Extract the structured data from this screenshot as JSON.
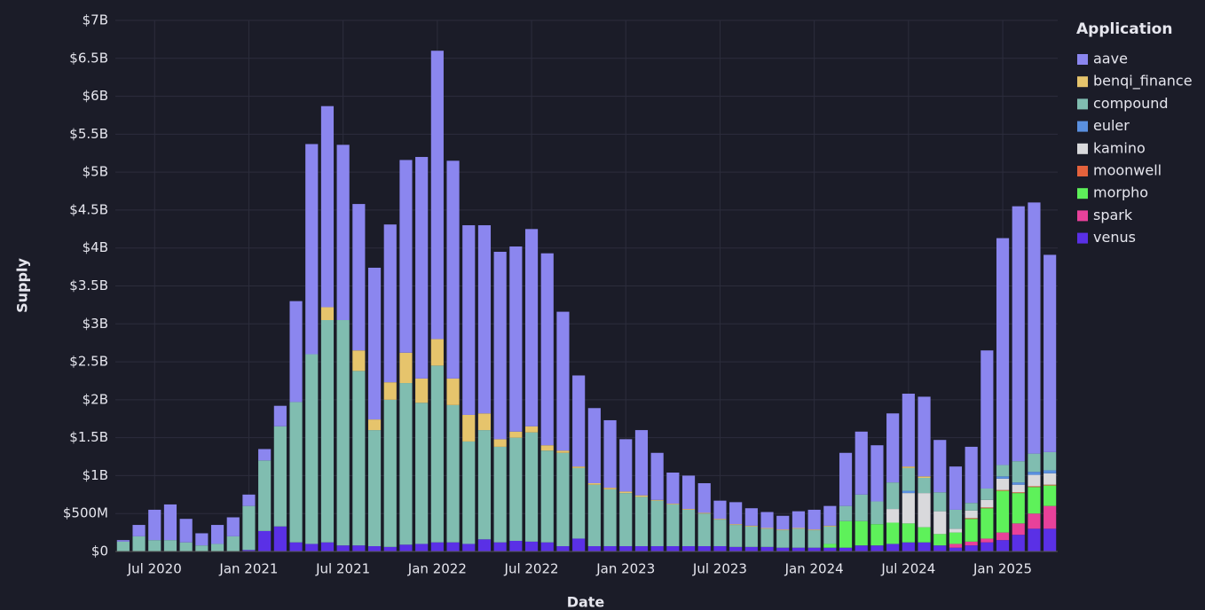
{
  "chart_data": {
    "type": "stacked_bar",
    "x_label": "Date",
    "y_label": "Supply",
    "legend_title": "Application",
    "legend_position": "right",
    "categories": [
      null,
      null,
      "Jul 2020",
      null,
      null,
      null,
      null,
      null,
      "Jan 2021",
      null,
      null,
      null,
      null,
      null,
      "Jul 2021",
      null,
      null,
      null,
      null,
      null,
      "Jan 2022",
      null,
      null,
      null,
      null,
      null,
      "Jul 2022",
      null,
      null,
      null,
      null,
      null,
      "Jan 2023",
      null,
      null,
      null,
      null,
      null,
      "Jul 2023",
      null,
      null,
      null,
      null,
      null,
      "Jan 2024",
      null,
      null,
      null,
      null,
      null,
      "Jul 2024",
      null,
      null,
      null,
      null,
      null,
      "Jan 2025",
      null,
      null,
      null
    ],
    "ylim": [
      0,
      7000000000.0
    ],
    "yticks": [
      {
        "value": 0,
        "label": "$0"
      },
      {
        "value": 500000000.0,
        "label": "$500M"
      },
      {
        "value": 1000000000.0,
        "label": "$1B"
      },
      {
        "value": 1500000000.0,
        "label": "$1.5B"
      },
      {
        "value": 2000000000.0,
        "label": "$2B"
      },
      {
        "value": 2500000000.0,
        "label": "$2.5B"
      },
      {
        "value": 3000000000.0,
        "label": "$3B"
      },
      {
        "value": 3500000000.0,
        "label": "$3.5B"
      },
      {
        "value": 4000000000.0,
        "label": "$4B"
      },
      {
        "value": 4500000000.0,
        "label": "$4.5B"
      },
      {
        "value": 5000000000.0,
        "label": "$5B"
      },
      {
        "value": 5500000000.0,
        "label": "$5.5B"
      },
      {
        "value": 6000000000.0,
        "label": "$6B"
      },
      {
        "value": 6500000000.0,
        "label": "$6.5B"
      },
      {
        "value": 7000000000.0,
        "label": "$7B"
      }
    ],
    "grid": true,
    "series": [
      {
        "name": "aave",
        "color": "#8b86ef",
        "values": [
          20000000.0,
          150000000.0,
          400000000.0,
          470000000.0,
          310000000.0,
          160000000.0,
          250000000.0,
          250000000.0,
          150000000.0,
          150000000.0,
          270000000.0,
          1330000000.0,
          2770000000.0,
          2650000000.0,
          2310000000.0,
          1930000000.0,
          2000000000.0,
          2080000000.0,
          2540000000.0,
          2920000000.0,
          3800000000.0,
          2870000000.0,
          2500000000.0,
          2480000000.0,
          2470000000.0,
          2440000000.0,
          2600000000.0,
          2530000000.0,
          1830000000.0,
          1200000000.0,
          990000000.0,
          890000000.0,
          690000000.0,
          860000000.0,
          620000000.0,
          410000000.0,
          440000000.0,
          390000000.0,
          240000000.0,
          290000000.0,
          230000000.0,
          210000000.0,
          180000000.0,
          220000000.0,
          260000000.0,
          260000000.0,
          700000000.0,
          830000000.0,
          740000000.0,
          910000000.0,
          960000000.0,
          1050000000.0,
          690000000.0,
          570000000.0,
          740000000.0,
          1820000000.0,
          2990000000.0,
          3360000000.0,
          3310000000.0,
          2600000000.0
        ]
      },
      {
        "name": "benqi_finance",
        "color": "#e6c46c",
        "values": [
          0,
          0,
          0,
          0,
          0,
          0,
          0,
          0,
          0,
          0,
          0,
          0,
          0,
          170000000.0,
          0,
          270000000.0,
          140000000.0,
          230000000.0,
          400000000.0,
          320000000.0,
          350000000.0,
          350000000.0,
          350000000.0,
          220000000.0,
          100000000.0,
          80000000.0,
          80000000.0,
          70000000.0,
          30000000.0,
          20000000.0,
          20000000.0,
          20000000.0,
          20000000.0,
          20000000.0,
          10000000.0,
          10000000.0,
          10000000.0,
          10000000.0,
          10000000.0,
          10000000.0,
          10000000.0,
          10000000.0,
          10000000.0,
          10000000.0,
          10000000.0,
          10000000.0,
          0,
          0,
          0,
          0,
          20000000.0,
          20000000.0,
          0,
          0,
          0,
          0,
          0,
          0,
          0,
          0
        ]
      },
      {
        "name": "compound",
        "color": "#80bdb0",
        "values": [
          130000000.0,
          200000000.0,
          150000000.0,
          150000000.0,
          120000000.0,
          80000000.0,
          100000000.0,
          200000000.0,
          580000000.0,
          930000000.0,
          1320000000.0,
          1850000000.0,
          2500000000.0,
          2930000000.0,
          2970000000.0,
          2300000000.0,
          1530000000.0,
          1940000000.0,
          2130000000.0,
          1860000000.0,
          2330000000.0,
          1810000000.0,
          1350000000.0,
          1440000000.0,
          1260000000.0,
          1360000000.0,
          1440000000.0,
          1210000000.0,
          1230000000.0,
          930000000.0,
          810000000.0,
          750000000.0,
          700000000.0,
          650000000.0,
          600000000.0,
          550000000.0,
          480000000.0,
          430000000.0,
          350000000.0,
          290000000.0,
          270000000.0,
          240000000.0,
          230000000.0,
          250000000.0,
          230000000.0,
          230000000.0,
          200000000.0,
          350000000.0,
          300000000.0,
          350000000.0,
          300000000.0,
          200000000.0,
          250000000.0,
          250000000.0,
          100000000.0,
          150000000.0,
          150000000.0,
          280000000.0,
          240000000.0,
          240000000.0
        ]
      },
      {
        "name": "euler",
        "color": "#5a90e0",
        "values": [
          0,
          0,
          0,
          0,
          0,
          0,
          0,
          0,
          0,
          0,
          0,
          0,
          0,
          0,
          0,
          0,
          0,
          0,
          0,
          0,
          0,
          0,
          0,
          0,
          0,
          0,
          0,
          0,
          0,
          0,
          0,
          0,
          0,
          0,
          0,
          0,
          0,
          0,
          0,
          0,
          0,
          0,
          0,
          0,
          0,
          0,
          0,
          0,
          0,
          0,
          30000000.0,
          0,
          0,
          0,
          0,
          0,
          30000000.0,
          30000000.0,
          40000000.0,
          40000000.0
        ]
      },
      {
        "name": "kamino",
        "color": "#d9d9dc",
        "values": [
          0,
          0,
          0,
          0,
          0,
          0,
          0,
          0,
          0,
          0,
          0,
          0,
          0,
          0,
          0,
          0,
          0,
          0,
          0,
          0,
          0,
          0,
          0,
          0,
          0,
          0,
          0,
          0,
          0,
          0,
          0,
          0,
          0,
          0,
          0,
          0,
          0,
          0,
          0,
          0,
          0,
          0,
          0,
          0,
          0,
          0,
          0,
          0,
          0,
          180000000.0,
          400000000.0,
          450000000.0,
          300000000.0,
          50000000.0,
          100000000.0,
          100000000.0,
          150000000.0,
          100000000.0,
          150000000.0,
          150000000.0
        ]
      },
      {
        "name": "moonwell",
        "color": "#e5623c",
        "values": [
          0,
          0,
          0,
          0,
          0,
          0,
          0,
          0,
          0,
          0,
          0,
          0,
          0,
          0,
          0,
          0,
          0,
          0,
          0,
          0,
          0,
          0,
          0,
          0,
          0,
          0,
          0,
          0,
          0,
          0,
          0,
          0,
          0,
          0,
          0,
          0,
          0,
          0,
          0,
          0,
          0,
          0,
          0,
          0,
          0,
          0,
          0,
          0,
          0,
          0,
          0,
          0,
          0,
          0,
          10000000.0,
          10000000.0,
          10000000.0,
          10000000.0,
          10000000.0,
          10000000.0
        ]
      },
      {
        "name": "morpho",
        "color": "#5ef15a",
        "values": [
          0,
          0,
          0,
          0,
          0,
          0,
          0,
          0,
          0,
          0,
          0,
          0,
          0,
          0,
          0,
          0,
          0,
          0,
          0,
          0,
          0,
          0,
          0,
          0,
          0,
          0,
          0,
          0,
          0,
          0,
          0,
          0,
          0,
          0,
          0,
          0,
          0,
          0,
          0,
          0,
          0,
          0,
          0,
          0,
          0,
          50000000.0,
          350000000.0,
          320000000.0,
          280000000.0,
          280000000.0,
          250000000.0,
          200000000.0,
          150000000.0,
          150000000.0,
          300000000.0,
          400000000.0,
          550000000.0,
          400000000.0,
          350000000.0,
          270000000.0
        ]
      },
      {
        "name": "spark",
        "color": "#e8419a",
        "values": [
          0,
          0,
          0,
          0,
          0,
          0,
          0,
          0,
          0,
          0,
          0,
          0,
          0,
          0,
          0,
          0,
          0,
          0,
          0,
          0,
          0,
          0,
          0,
          0,
          0,
          0,
          0,
          0,
          0,
          0,
          0,
          0,
          0,
          0,
          0,
          0,
          0,
          0,
          0,
          0,
          0,
          0,
          0,
          0,
          0,
          0,
          0,
          0,
          0,
          0,
          0,
          0,
          0,
          50000000.0,
          50000000.0,
          50000000.0,
          100000000.0,
          150000000.0,
          200000000.0,
          300000000.0
        ]
      },
      {
        "name": "venus",
        "color": "#5a30e6",
        "values": [
          0,
          0,
          0,
          0,
          0,
          0,
          0,
          0,
          20000000.0,
          270000000.0,
          330000000.0,
          120000000.0,
          100000000.0,
          120000000.0,
          80000000.0,
          80000000.0,
          70000000.0,
          60000000.0,
          90000000.0,
          100000000.0,
          120000000.0,
          120000000.0,
          100000000.0,
          160000000.0,
          120000000.0,
          140000000.0,
          130000000.0,
          120000000.0,
          70000000.0,
          170000000.0,
          70000000.0,
          70000000.0,
          70000000.0,
          70000000.0,
          70000000.0,
          70000000.0,
          70000000.0,
          70000000.0,
          70000000.0,
          60000000.0,
          60000000.0,
          60000000.0,
          50000000.0,
          50000000.0,
          50000000.0,
          50000000.0,
          50000000.0,
          80000000.0,
          80000000.0,
          100000000.0,
          120000000.0,
          120000000.0,
          80000000.0,
          50000000.0,
          80000000.0,
          120000000.0,
          150000000.0,
          220000000.0,
          300000000.0,
          300000000.0
        ]
      }
    ]
  }
}
